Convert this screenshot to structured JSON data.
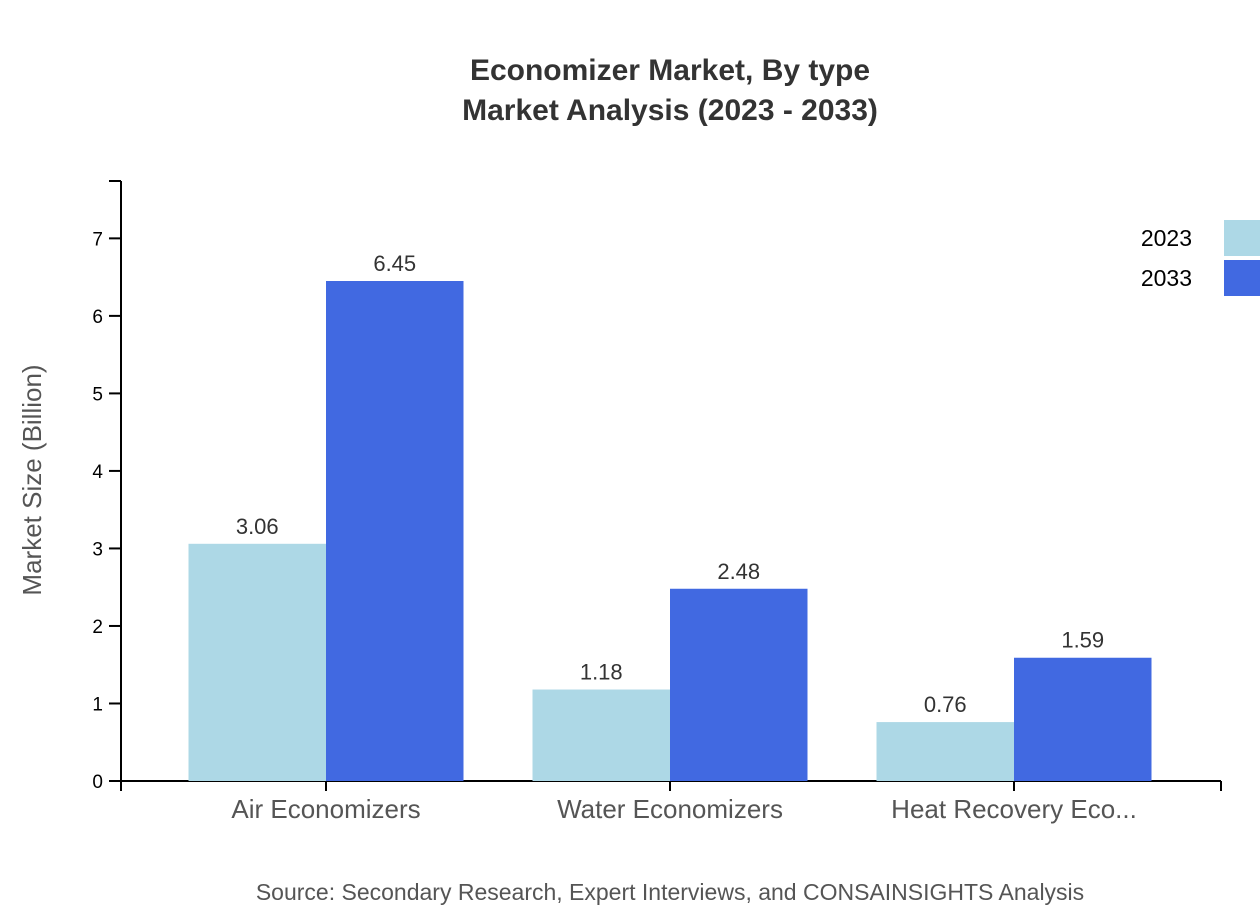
{
  "chart_data": {
    "type": "bar",
    "title": "Economizer Market, By type",
    "subtitle": "Market Analysis (2023 - 2033)",
    "xlabel": "",
    "ylabel": "Market Size (Billion)",
    "ylim": [
      0,
      7.74
    ],
    "yticks": [
      0,
      1,
      2,
      3,
      4,
      5,
      6,
      7
    ],
    "categories": [
      "Air Economizers",
      "Water Economizers",
      "Heat Recovery Eco..."
    ],
    "series": [
      {
        "name": "2023",
        "color": "#add8e6",
        "values": [
          3.06,
          1.18,
          0.76
        ]
      },
      {
        "name": "2033",
        "color": "#4169e1",
        "values": [
          6.45,
          2.48,
          1.59
        ]
      }
    ],
    "grid": false,
    "legend_position": "top-right",
    "source": "Source: Secondary Research, Expert Interviews, and CONSAINSIGHTS Analysis"
  }
}
